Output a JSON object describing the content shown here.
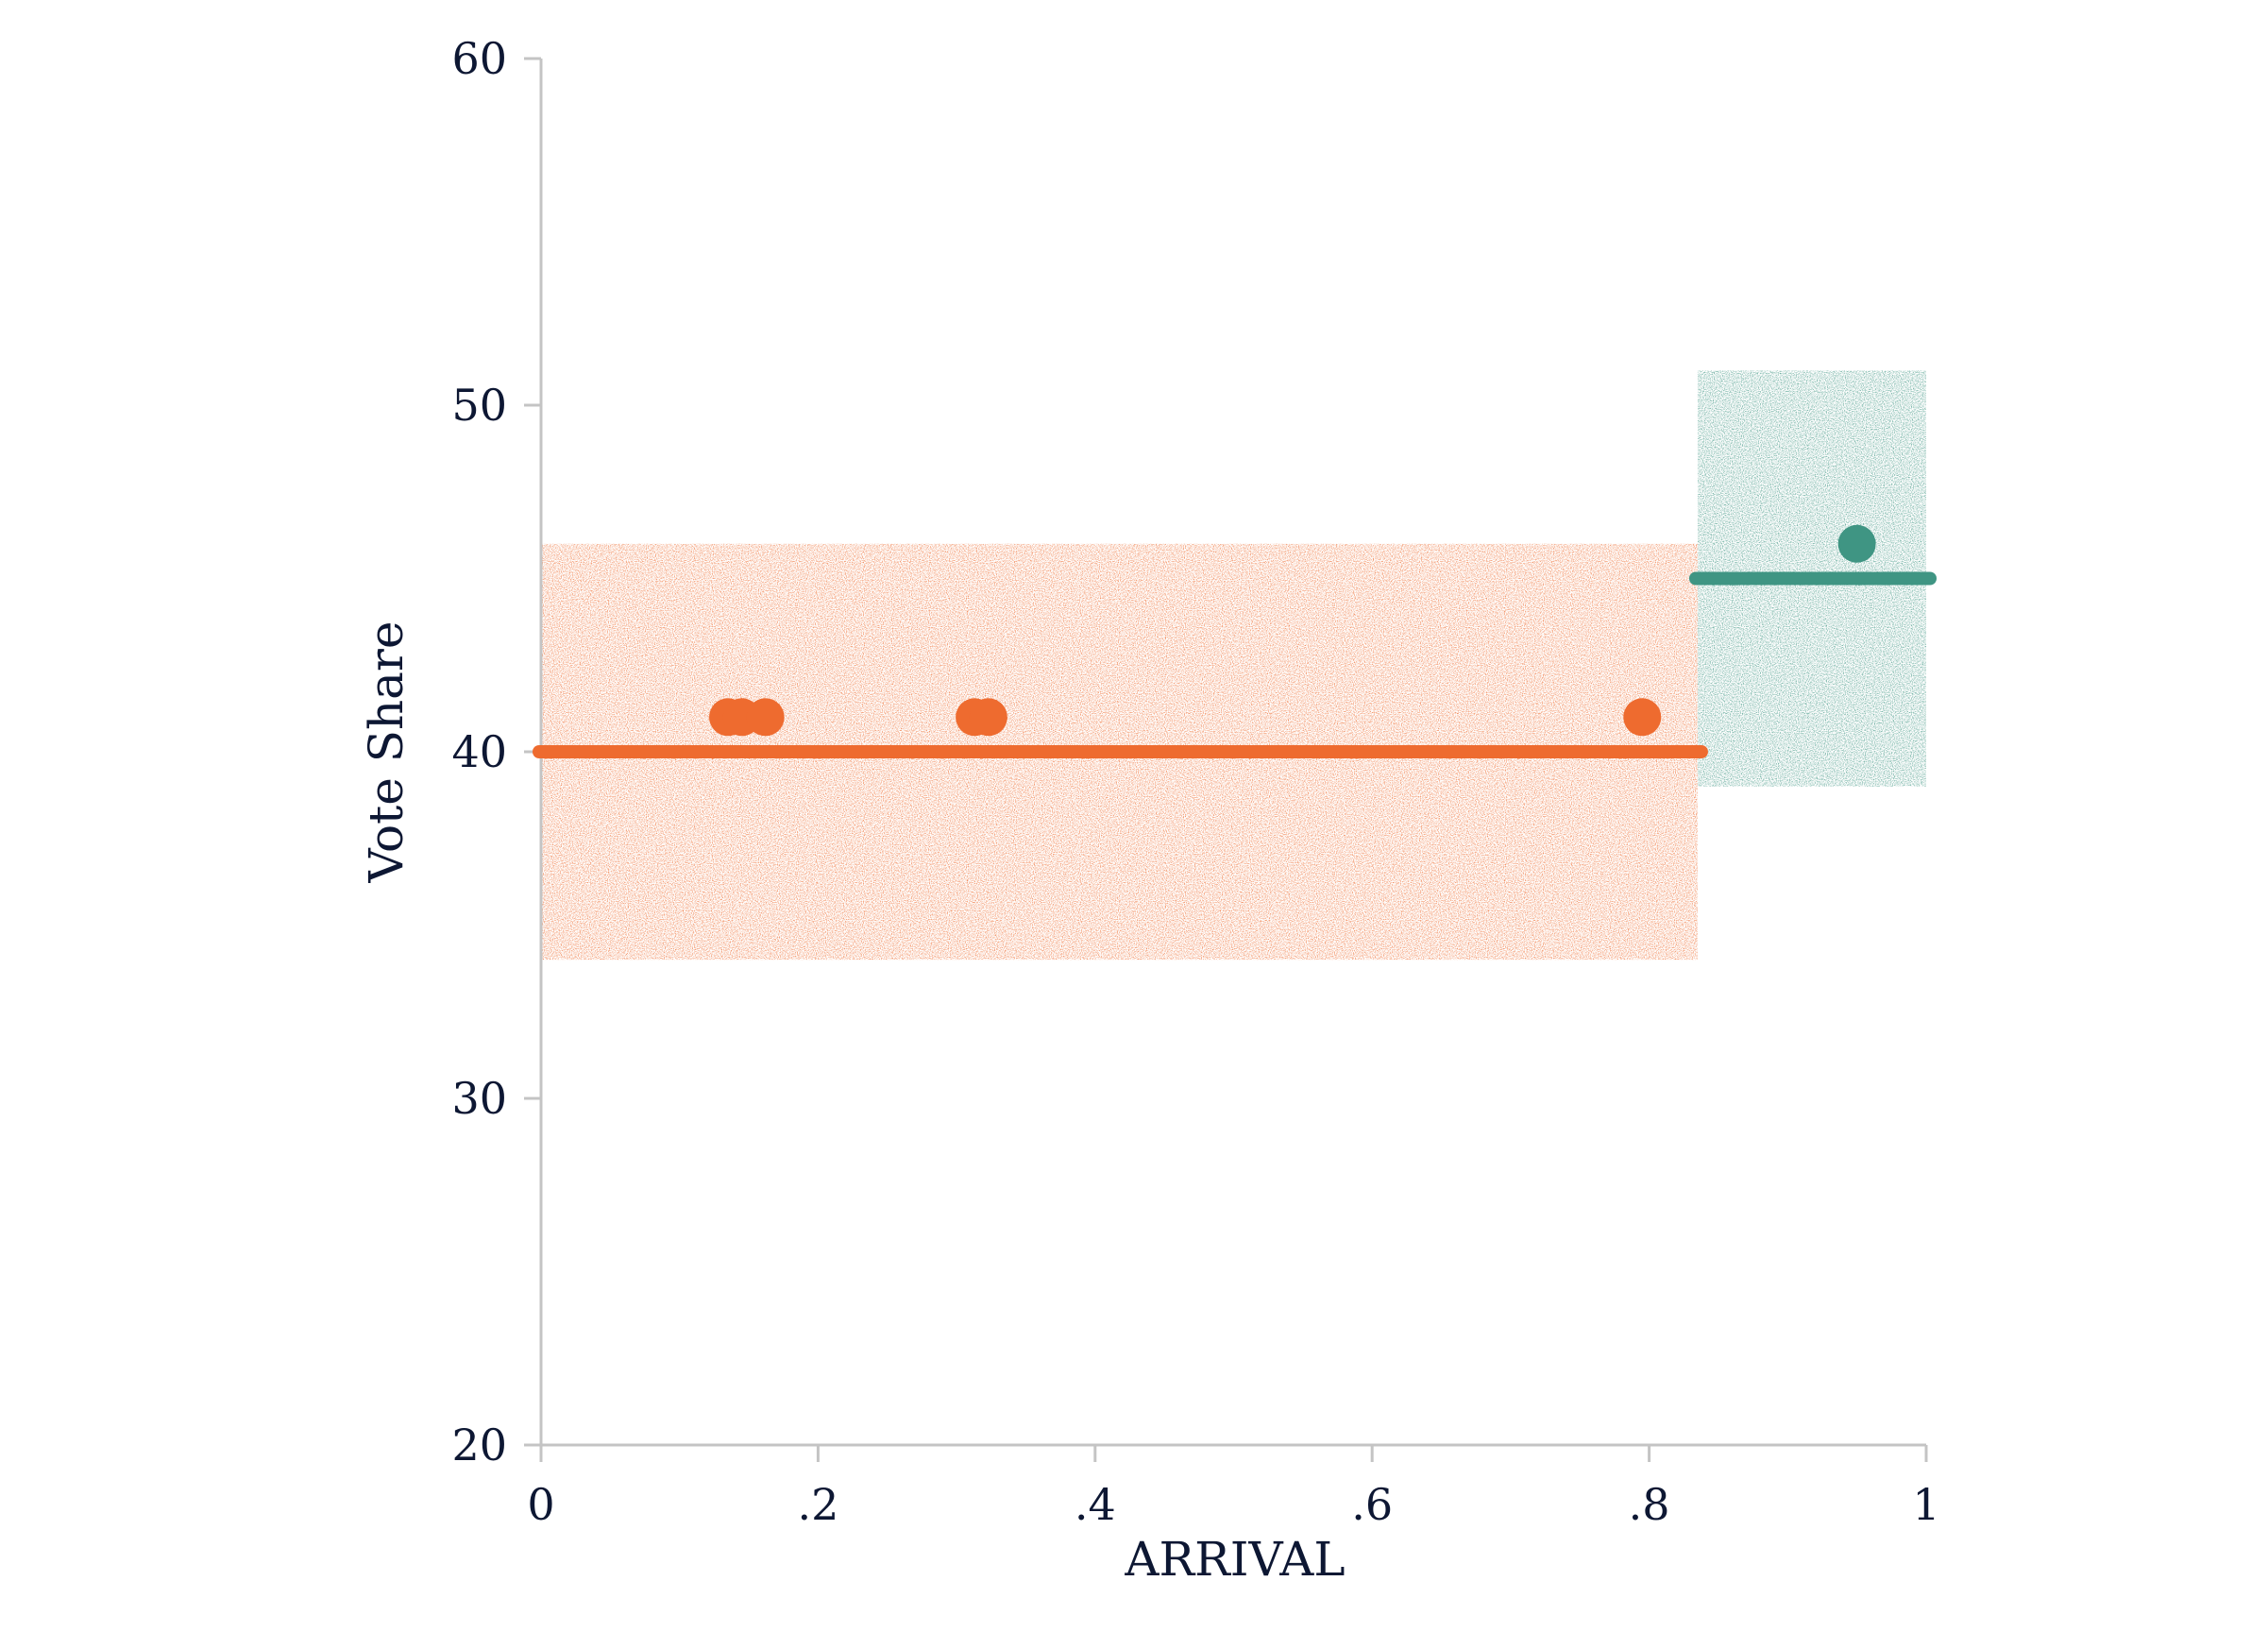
{
  "chart_data": {
    "type": "scatter",
    "title": "",
    "xlabel": "ARRIVAL",
    "ylabel": "Vote Share",
    "xlim": [
      0,
      1
    ],
    "ylim": [
      20,
      60
    ],
    "x_ticks": [
      {
        "value": 0,
        "label": "0"
      },
      {
        "value": 0.2,
        "label": ".2"
      },
      {
        "value": 0.4,
        "label": ".4"
      },
      {
        "value": 0.6,
        "label": ".6"
      },
      {
        "value": 0.8,
        "label": ".8"
      },
      {
        "value": 1,
        "label": "1"
      }
    ],
    "y_ticks": [
      {
        "value": 20,
        "label": "20"
      },
      {
        "value": 30,
        "label": "30"
      },
      {
        "value": 40,
        "label": "40"
      },
      {
        "value": 50,
        "label": "50"
      },
      {
        "value": 60,
        "label": "60"
      }
    ],
    "grid": false,
    "groups": [
      {
        "color": "#ee6b2f",
        "x_range": [
          0,
          0.835
        ],
        "mean": 40,
        "band": [
          34,
          46
        ],
        "points": [
          {
            "x": 0.135,
            "y": 41
          },
          {
            "x": 0.145,
            "y": 41
          },
          {
            "x": 0.162,
            "y": 41
          },
          {
            "x": 0.313,
            "y": 41
          },
          {
            "x": 0.323,
            "y": 41
          },
          {
            "x": 0.795,
            "y": 41
          }
        ]
      },
      {
        "color": "#3f9583",
        "x_range": [
          0.835,
          1
        ],
        "mean": 45,
        "band": [
          39,
          51
        ],
        "points": [
          {
            "x": 0.95,
            "y": 46
          }
        ]
      }
    ]
  }
}
